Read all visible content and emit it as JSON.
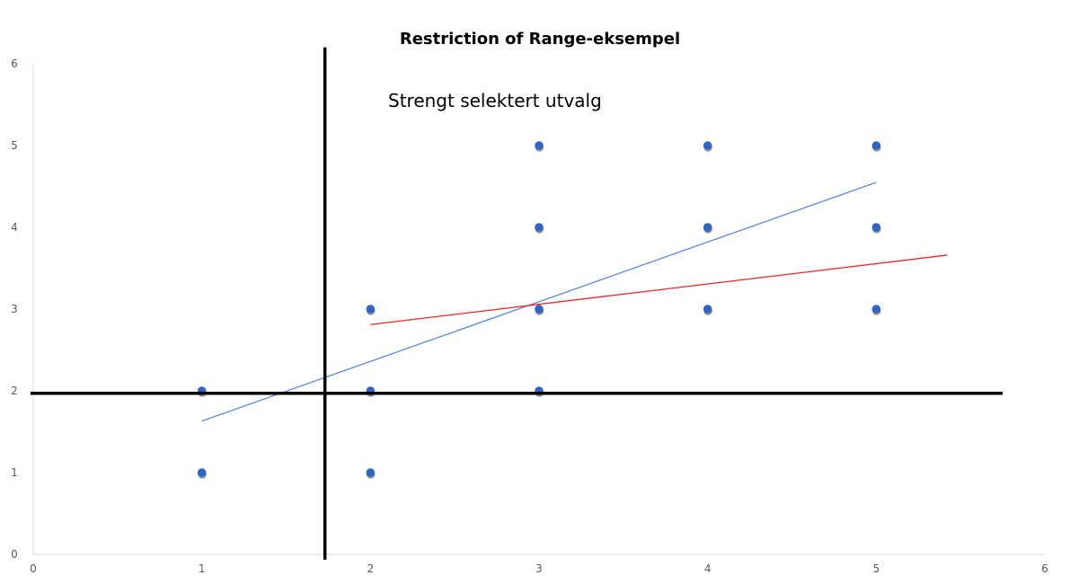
{
  "chart_data": {
    "type": "scatter",
    "title": "Restriction of Range-eksempel",
    "xlabel": "",
    "ylabel": "",
    "xlim": [
      0,
      6
    ],
    "ylim": [
      0,
      6
    ],
    "xticks": [
      "0",
      "1",
      "2",
      "3",
      "4",
      "5",
      "6"
    ],
    "yticks": [
      "0",
      "1",
      "2",
      "3",
      "4",
      "5",
      "6"
    ],
    "grid": false,
    "legend": "none",
    "annotation": "Strengt selektert utvalg",
    "points": [
      {
        "x": 1,
        "y": 1
      },
      {
        "x": 1,
        "y": 2
      },
      {
        "x": 2,
        "y": 1
      },
      {
        "x": 2,
        "y": 2
      },
      {
        "x": 2,
        "y": 3
      },
      {
        "x": 3,
        "y": 2
      },
      {
        "x": 3,
        "y": 3
      },
      {
        "x": 3,
        "y": 4
      },
      {
        "x": 3,
        "y": 5
      },
      {
        "x": 4,
        "y": 3
      },
      {
        "x": 4,
        "y": 4
      },
      {
        "x": 4,
        "y": 5
      },
      {
        "x": 5,
        "y": 3
      },
      {
        "x": 5,
        "y": 4
      },
      {
        "x": 5,
        "y": 5
      }
    ],
    "trendlines": [
      {
        "x": [
          1,
          5
        ],
        "y": [
          1.63,
          4.55
        ],
        "color": "#5B8BD6"
      },
      {
        "x": [
          2,
          5.42
        ],
        "y": [
          2.81,
          3.66
        ],
        "color": "#E8262A"
      }
    ],
    "cutoff_lines": [
      {
        "orientation": "vertical",
        "x": 1.73,
        "y_from": 0,
        "y_to": 6.2
      },
      {
        "orientation": "horizontal",
        "y": 1.97,
        "x_from": 0,
        "x_to": 5.75
      }
    ],
    "colors": {
      "point": "#3264C2",
      "point_shadow": "#444444",
      "axis": "#D9D9D9",
      "cutoff": "#000000"
    }
  }
}
